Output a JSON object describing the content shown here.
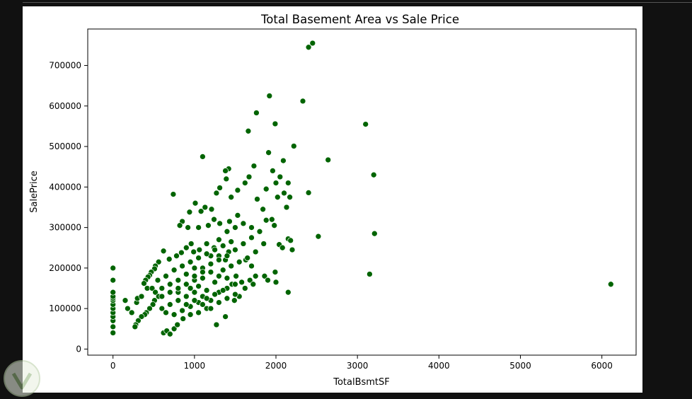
{
  "chart_data": {
    "type": "scatter",
    "title": "Total Basement Area vs Sale Price",
    "xlabel": "TotalBsmtSF",
    "ylabel": "SalePrice",
    "xlim": [
      -310,
      6420
    ],
    "ylim": [
      -15000,
      790000
    ],
    "xticks": [
      0,
      1000,
      2000,
      3000,
      4000,
      5000,
      6000
    ],
    "yticks": [
      0,
      100000,
      200000,
      300000,
      400000,
      500000,
      600000,
      700000
    ],
    "grid": false,
    "legend": "none",
    "marker_color": "#006400",
    "marker_edge": "#ffffff",
    "points": [
      [
        0,
        40000
      ],
      [
        0,
        55000
      ],
      [
        0,
        70000
      ],
      [
        0,
        80000
      ],
      [
        0,
        90000
      ],
      [
        0,
        100000
      ],
      [
        0,
        110000
      ],
      [
        0,
        120000
      ],
      [
        0,
        125000
      ],
      [
        0,
        130000
      ],
      [
        0,
        140000
      ],
      [
        0,
        170000
      ],
      [
        0,
        200000
      ],
      [
        2450,
        755000
      ],
      [
        2400,
        745000
      ],
      [
        1920,
        625000
      ],
      [
        2330,
        612000
      ],
      [
        1760,
        583000
      ],
      [
        1990,
        556000
      ],
      [
        3100,
        555000
      ],
      [
        1660,
        538000
      ],
      [
        2220,
        501000
      ],
      [
        1910,
        485000
      ],
      [
        1100,
        475000
      ],
      [
        2640,
        467000
      ],
      [
        2090,
        465000
      ],
      [
        1730,
        452000
      ],
      [
        1420,
        445000
      ],
      [
        3200,
        430000
      ],
      [
        1380,
        440000
      ],
      [
        2050,
        425000
      ],
      [
        740,
        382000
      ],
      [
        2400,
        386000
      ],
      [
        1270,
        385000
      ],
      [
        1530,
        392000
      ],
      [
        1880,
        395000
      ],
      [
        1960,
        440000
      ],
      [
        2000,
        410000
      ],
      [
        2150,
        410000
      ],
      [
        2100,
        385000
      ],
      [
        1620,
        410000
      ],
      [
        1670,
        425000
      ],
      [
        1390,
        420000
      ],
      [
        1310,
        398000
      ],
      [
        1450,
        375000
      ],
      [
        2020,
        375000
      ],
      [
        2170,
        375000
      ],
      [
        1770,
        370000
      ],
      [
        2130,
        350000
      ],
      [
        1840,
        345000
      ],
      [
        1210,
        345000
      ],
      [
        1080,
        340000
      ],
      [
        1130,
        350000
      ],
      [
        1010,
        360000
      ],
      [
        940,
        338000
      ],
      [
        1880,
        318000
      ],
      [
        1950,
        320000
      ],
      [
        1980,
        305000
      ],
      [
        1430,
        315000
      ],
      [
        1530,
        330000
      ],
      [
        1310,
        310000
      ],
      [
        1240,
        320000
      ],
      [
        1170,
        305000
      ],
      [
        1050,
        300000
      ],
      [
        850,
        315000
      ],
      [
        820,
        305000
      ],
      [
        920,
        300000
      ],
      [
        3210,
        285000
      ],
      [
        2520,
        278000
      ],
      [
        2150,
        272000
      ],
      [
        2180,
        268000
      ],
      [
        2040,
        258000
      ],
      [
        2080,
        250000
      ],
      [
        2200,
        245000
      ],
      [
        1990,
        190000
      ],
      [
        1630,
        220000
      ],
      [
        1700,
        205000
      ],
      [
        1750,
        180000
      ],
      [
        1510,
        180000
      ],
      [
        1580,
        165000
      ],
      [
        1460,
        160000
      ],
      [
        1860,
        180000
      ],
      [
        1900,
        170000
      ],
      [
        1380,
        220000
      ],
      [
        1420,
        240000
      ],
      [
        1300,
        230000
      ],
      [
        1240,
        250000
      ],
      [
        1150,
        260000
      ],
      [
        1060,
        245000
      ],
      [
        990,
        240000
      ],
      [
        960,
        260000
      ],
      [
        900,
        250000
      ],
      [
        840,
        238000
      ],
      [
        780,
        230000
      ],
      [
        690,
        222000
      ],
      [
        620,
        242000
      ],
      [
        560,
        215000
      ],
      [
        520,
        205000
      ],
      [
        510,
        198000
      ],
      [
        470,
        190000
      ],
      [
        450,
        182000
      ],
      [
        430,
        178000
      ],
      [
        400,
        170000
      ],
      [
        380,
        162000
      ],
      [
        420,
        150000
      ],
      [
        480,
        150000
      ],
      [
        520,
        140000
      ],
      [
        560,
        130000
      ],
      [
        510,
        120000
      ],
      [
        490,
        110000
      ],
      [
        450,
        100000
      ],
      [
        410,
        90000
      ],
      [
        390,
        85000
      ],
      [
        350,
        80000
      ],
      [
        310,
        70000
      ],
      [
        280,
        60000
      ],
      [
        270,
        55000
      ],
      [
        230,
        90000
      ],
      [
        180,
        100000
      ],
      [
        150,
        120000
      ],
      [
        290,
        115000
      ],
      [
        300,
        125000
      ],
      [
        350,
        130000
      ],
      [
        620,
        40000
      ],
      [
        660,
        45000
      ],
      [
        700,
        37000
      ],
      [
        750,
        50000
      ],
      [
        790,
        60000
      ],
      [
        860,
        75000
      ],
      [
        950,
        85000
      ],
      [
        1050,
        90000
      ],
      [
        1150,
        100000
      ],
      [
        1270,
        60000
      ],
      [
        1380,
        80000
      ],
      [
        1490,
        120000
      ],
      [
        1550,
        130000
      ],
      [
        1620,
        150000
      ],
      [
        1680,
        170000
      ],
      [
        1720,
        160000
      ],
      [
        2000,
        165000
      ],
      [
        2150,
        140000
      ],
      [
        3150,
        185000
      ],
      [
        6110,
        160000
      ],
      [
        1000,
        200000
      ],
      [
        1100,
        200000
      ],
      [
        1200,
        190000
      ],
      [
        1300,
        180000
      ],
      [
        1400,
        175000
      ],
      [
        900,
        185000
      ],
      [
        800,
        170000
      ],
      [
        700,
        160000
      ],
      [
        600,
        150000
      ],
      [
        950,
        150000
      ],
      [
        1050,
        155000
      ],
      [
        1150,
        145000
      ],
      [
        1250,
        165000
      ],
      [
        1350,
        195000
      ],
      [
        1450,
        205000
      ],
      [
        1550,
        215000
      ],
      [
        1650,
        225000
      ],
      [
        1750,
        240000
      ],
      [
        1850,
        260000
      ],
      [
        700,
        110000
      ],
      [
        800,
        120000
      ],
      [
        900,
        130000
      ],
      [
        1000,
        140000
      ],
      [
        1100,
        130000
      ],
      [
        1200,
        120000
      ],
      [
        1300,
        140000
      ],
      [
        1400,
        150000
      ],
      [
        1500,
        160000
      ],
      [
        600,
        100000
      ],
      [
        650,
        90000
      ],
      [
        750,
        85000
      ],
      [
        850,
        95000
      ],
      [
        950,
        105000
      ],
      [
        1050,
        115000
      ],
      [
        1150,
        125000
      ],
      [
        1250,
        135000
      ],
      [
        1350,
        145000
      ],
      [
        1000,
        170000
      ],
      [
        1100,
        175000
      ],
      [
        1200,
        210000
      ],
      [
        1300,
        220000
      ],
      [
        1400,
        230000
      ],
      [
        1500,
        245000
      ],
      [
        1600,
        260000
      ],
      [
        1700,
        275000
      ],
      [
        1800,
        290000
      ],
      [
        800,
        140000
      ],
      [
        900,
        160000
      ],
      [
        1000,
        180000
      ],
      [
        1100,
        190000
      ],
      [
        1200,
        230000
      ],
      [
        1300,
        270000
      ],
      [
        1400,
        290000
      ],
      [
        1500,
        300000
      ],
      [
        1600,
        310000
      ],
      [
        1700,
        300000
      ],
      [
        550,
        170000
      ],
      [
        650,
        180000
      ],
      [
        750,
        195000
      ],
      [
        850,
        205000
      ],
      [
        950,
        215000
      ],
      [
        1050,
        225000
      ],
      [
        1150,
        235000
      ],
      [
        1250,
        245000
      ],
      [
        1350,
        255000
      ],
      [
        1450,
        265000
      ],
      [
        600,
        130000
      ],
      [
        700,
        140000
      ],
      [
        800,
        150000
      ],
      [
        900,
        110000
      ],
      [
        1000,
        120000
      ],
      [
        1100,
        110000
      ],
      [
        1200,
        100000
      ],
      [
        1300,
        115000
      ],
      [
        1400,
        125000
      ],
      [
        1500,
        135000
      ]
    ]
  }
}
